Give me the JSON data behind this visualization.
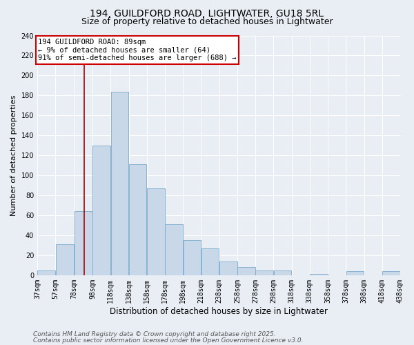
{
  "title1": "194, GUILDFORD ROAD, LIGHTWATER, GU18 5RL",
  "title2": "Size of property relative to detached houses in Lightwater",
  "xlabel": "Distribution of detached houses by size in Lightwater",
  "ylabel": "Number of detached properties",
  "categories": [
    "37sqm",
    "57sqm",
    "78sqm",
    "98sqm",
    "118sqm",
    "138sqm",
    "158sqm",
    "178sqm",
    "198sqm",
    "218sqm",
    "238sqm",
    "258sqm",
    "278sqm",
    "298sqm",
    "318sqm",
    "338sqm",
    "358sqm",
    "378sqm",
    "398sqm",
    "418sqm",
    "438sqm"
  ],
  "bin_edges": [
    37,
    57,
    78,
    98,
    118,
    138,
    158,
    178,
    198,
    218,
    238,
    258,
    278,
    298,
    318,
    338,
    358,
    378,
    398,
    418,
    438
  ],
  "bar_heights": [
    5,
    31,
    64,
    130,
    184,
    111,
    87,
    51,
    35,
    27,
    14,
    8,
    5,
    5,
    0,
    1,
    0,
    4,
    0,
    4
  ],
  "bar_color": "#c8d8e8",
  "bar_edge_color": "#7aaacc",
  "vline_x": 89,
  "vline_color": "#aa0000",
  "annotation_line1": "194 GUILDFORD ROAD: 89sqm",
  "annotation_line2": "← 9% of detached houses are smaller (64)",
  "annotation_line3": "91% of semi-detached houses are larger (688) →",
  "annotation_box_color": "#ffffff",
  "annotation_box_edge": "#cc0000",
  "ylim": [
    0,
    240
  ],
  "yticks": [
    0,
    20,
    40,
    60,
    80,
    100,
    120,
    140,
    160,
    180,
    200,
    220,
    240
  ],
  "bg_color": "#e8eef4",
  "grid_color": "#ffffff",
  "footer1": "Contains HM Land Registry data © Crown copyright and database right 2025.",
  "footer2": "Contains public sector information licensed under the Open Government Licence v3.0.",
  "title1_fontsize": 10,
  "title2_fontsize": 9,
  "xlabel_fontsize": 8.5,
  "ylabel_fontsize": 8,
  "tick_fontsize": 7,
  "annot_fontsize": 7.5,
  "footer_fontsize": 6.5
}
